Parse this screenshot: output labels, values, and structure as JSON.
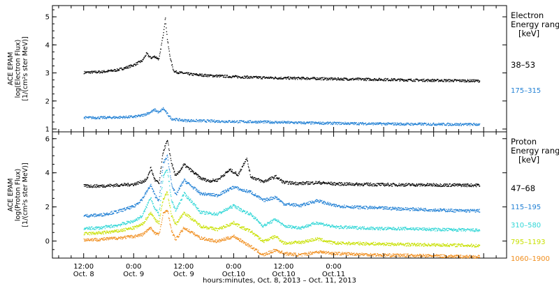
{
  "chart_data": [
    {
      "type": "scatter",
      "ylabel_lines": [
        "ACE EPAM",
        "log(Electron Flux)",
        "[1/(cm²s ster MeV)]"
      ],
      "ylim": [
        0.9,
        5.4
      ],
      "yticks": [
        1,
        2,
        3,
        4,
        5
      ],
      "legend_title_lines": [
        "Electron",
        "Energy range",
        "[keV]"
      ],
      "series": [
        {
          "name": "38–53",
          "color": "#000000",
          "points": [
            [
              0,
              3.03
            ],
            [
              2,
              3.04
            ],
            [
              4,
              3.05
            ],
            [
              6,
              3.08
            ],
            [
              8,
              3.12
            ],
            [
              10,
              3.2
            ],
            [
              12,
              3.3
            ],
            [
              14,
              3.45
            ],
            [
              15,
              3.7
            ],
            [
              16,
              3.55
            ],
            [
              17,
              3.6
            ],
            [
              18,
              3.5
            ],
            [
              19,
              4.4
            ],
            [
              19.5,
              4.98
            ],
            [
              20,
              4.2
            ],
            [
              20.5,
              3.7
            ],
            [
              21,
              3.35
            ],
            [
              21.5,
              3.1
            ],
            [
              22,
              3.05
            ],
            [
              24,
              3.0
            ],
            [
              26,
              2.96
            ],
            [
              30,
              2.92
            ],
            [
              36,
              2.88
            ],
            [
              42,
              2.85
            ],
            [
              48,
              2.83
            ],
            [
              54,
              2.82
            ],
            [
              60,
              2.8
            ],
            [
              66,
              2.79
            ],
            [
              72,
              2.78
            ],
            [
              78,
              2.76
            ],
            [
              84,
              2.75
            ],
            [
              90,
              2.74
            ],
            [
              95,
              2.73
            ]
          ]
        },
        {
          "name": "175–315",
          "color": "#1f7fd4",
          "points": [
            [
              0,
              1.42
            ],
            [
              4,
              1.42
            ],
            [
              8,
              1.43
            ],
            [
              12,
              1.45
            ],
            [
              14,
              1.5
            ],
            [
              16,
              1.62
            ],
            [
              17,
              1.7
            ],
            [
              18,
              1.6
            ],
            [
              19,
              1.75
            ],
            [
              20,
              1.55
            ],
            [
              21,
              1.38
            ],
            [
              24,
              1.32
            ],
            [
              30,
              1.3
            ],
            [
              36,
              1.28
            ],
            [
              42,
              1.27
            ],
            [
              48,
              1.25
            ],
            [
              54,
              1.23
            ],
            [
              60,
              1.22
            ],
            [
              66,
              1.21
            ],
            [
              72,
              1.2
            ],
            [
              78,
              1.19
            ],
            [
              84,
              1.19
            ],
            [
              90,
              1.18
            ],
            [
              95,
              1.18
            ]
          ]
        }
      ]
    },
    {
      "type": "scatter",
      "ylabel_lines": [
        "ACE EPAM",
        "log(Proton Flux)",
        "[1/(cm²s ster MeV)]"
      ],
      "ylim": [
        -1.0,
        6.4
      ],
      "yticks": [
        0,
        2,
        4,
        6
      ],
      "legend_title_lines": [
        "Proton",
        "Energy range",
        "[keV]"
      ],
      "series": [
        {
          "name": "47–68",
          "color": "#000000",
          "points": [
            [
              0,
              3.25
            ],
            [
              4,
              3.25
            ],
            [
              8,
              3.3
            ],
            [
              12,
              3.35
            ],
            [
              15,
              3.6
            ],
            [
              16,
              4.3
            ],
            [
              17,
              3.6
            ],
            [
              18,
              3.4
            ],
            [
              19,
              5.3
            ],
            [
              20,
              5.9
            ],
            [
              21,
              4.6
            ],
            [
              22,
              3.8
            ],
            [
              24,
              4.5
            ],
            [
              26,
              4.1
            ],
            [
              28,
              3.7
            ],
            [
              30,
              3.55
            ],
            [
              32,
              3.6
            ],
            [
              35,
              4.2
            ],
            [
              37,
              3.9
            ],
            [
              39,
              4.9
            ],
            [
              40,
              3.8
            ],
            [
              43,
              3.5
            ],
            [
              46,
              3.8
            ],
            [
              48,
              3.45
            ],
            [
              52,
              3.4
            ],
            [
              56,
              3.45
            ],
            [
              60,
              3.38
            ],
            [
              66,
              3.35
            ],
            [
              72,
              3.33
            ],
            [
              78,
              3.32
            ],
            [
              84,
              3.31
            ],
            [
              90,
              3.3
            ],
            [
              95,
              3.3
            ]
          ]
        },
        {
          "name": "115–195",
          "color": "#1f7fd4",
          "points": [
            [
              0,
              1.5
            ],
            [
              4,
              1.55
            ],
            [
              8,
              1.75
            ],
            [
              12,
              2.05
            ],
            [
              14,
              2.5
            ],
            [
              16,
              3.3
            ],
            [
              17,
              2.7
            ],
            [
              18,
              2.4
            ],
            [
              19,
              4.6
            ],
            [
              20,
              5.0
            ],
            [
              21,
              3.4
            ],
            [
              22,
              2.7
            ],
            [
              24,
              3.6
            ],
            [
              26,
              3.2
            ],
            [
              28,
              2.8
            ],
            [
              32,
              2.7
            ],
            [
              36,
              3.2
            ],
            [
              38,
              3.0
            ],
            [
              40,
              2.9
            ],
            [
              43,
              2.4
            ],
            [
              46,
              2.6
            ],
            [
              48,
              2.2
            ],
            [
              52,
              2.1
            ],
            [
              56,
              2.4
            ],
            [
              60,
              2.1
            ],
            [
              66,
              2.0
            ],
            [
              72,
              1.95
            ],
            [
              78,
              1.9
            ],
            [
              84,
              1.85
            ],
            [
              90,
              1.8
            ],
            [
              95,
              1.8
            ]
          ]
        },
        {
          "name": "310–580",
          "color": "#2fd6d6",
          "points": [
            [
              0,
              0.75
            ],
            [
              4,
              0.8
            ],
            [
              8,
              0.95
            ],
            [
              12,
              1.2
            ],
            [
              14,
              1.5
            ],
            [
              16,
              2.6
            ],
            [
              17,
              1.9
            ],
            [
              18,
              1.6
            ],
            [
              19,
              3.8
            ],
            [
              20,
              4.2
            ],
            [
              21,
              2.4
            ],
            [
              22,
              1.8
            ],
            [
              24,
              2.8
            ],
            [
              26,
              2.3
            ],
            [
              28,
              1.7
            ],
            [
              32,
              1.6
            ],
            [
              36,
              2.1
            ],
            [
              38,
              1.8
            ],
            [
              40,
              1.6
            ],
            [
              43,
              0.9
            ],
            [
              46,
              1.3
            ],
            [
              48,
              0.9
            ],
            [
              52,
              0.8
            ],
            [
              56,
              1.1
            ],
            [
              60,
              0.85
            ],
            [
              66,
              0.8
            ],
            [
              72,
              0.75
            ],
            [
              78,
              0.75
            ],
            [
              84,
              0.7
            ],
            [
              90,
              0.68
            ],
            [
              95,
              0.65
            ]
          ]
        },
        {
          "name": "795–1193",
          "color": "#c8e000",
          "points": [
            [
              0,
              0.45
            ],
            [
              4,
              0.5
            ],
            [
              8,
              0.6
            ],
            [
              12,
              0.8
            ],
            [
              14,
              1.0
            ],
            [
              16,
              1.7
            ],
            [
              17,
              1.3
            ],
            [
              18,
              1.1
            ],
            [
              19,
              2.5
            ],
            [
              20,
              2.9
            ],
            [
              21,
              1.5
            ],
            [
              22,
              1.0
            ],
            [
              24,
              1.7
            ],
            [
              26,
              1.3
            ],
            [
              28,
              0.9
            ],
            [
              32,
              0.7
            ],
            [
              36,
              1.1
            ],
            [
              38,
              0.8
            ],
            [
              40,
              0.6
            ],
            [
              43,
              0.0
            ],
            [
              46,
              0.3
            ],
            [
              48,
              -0.1
            ],
            [
              52,
              -0.05
            ],
            [
              56,
              0.15
            ],
            [
              60,
              -0.1
            ],
            [
              66,
              -0.12
            ],
            [
              72,
              -0.15
            ],
            [
              78,
              -0.18
            ],
            [
              84,
              -0.2
            ],
            [
              90,
              -0.22
            ],
            [
              95,
              -0.25
            ]
          ]
        },
        {
          "name": "1060–1900",
          "color": "#f08c1a",
          "points": [
            [
              0,
              0.1
            ],
            [
              4,
              0.12
            ],
            [
              8,
              0.2
            ],
            [
              12,
              0.3
            ],
            [
              14,
              0.4
            ],
            [
              16,
              0.8
            ],
            [
              17,
              0.5
            ],
            [
              18,
              0.4
            ],
            [
              19,
              1.6
            ],
            [
              20,
              1.9
            ],
            [
              21,
              0.6
            ],
            [
              22,
              0.1
            ],
            [
              24,
              0.8
            ],
            [
              26,
              0.5
            ],
            [
              28,
              0.2
            ],
            [
              32,
              0.0
            ],
            [
              36,
              0.3
            ],
            [
              38,
              0.0
            ],
            [
              40,
              -0.3
            ],
            [
              43,
              -0.8
            ],
            [
              46,
              -0.5
            ],
            [
              48,
              -0.7
            ],
            [
              52,
              -0.8
            ],
            [
              56,
              -0.6
            ],
            [
              60,
              -0.7
            ],
            [
              66,
              -0.75
            ],
            [
              72,
              -0.8
            ],
            [
              78,
              -0.82
            ],
            [
              84,
              -0.85
            ],
            [
              90,
              -0.88
            ],
            [
              95,
              -0.9
            ]
          ]
        }
      ]
    }
  ],
  "x_axis": {
    "xlim": [
      -7.5,
      101.5
    ],
    "major_ticks": [
      {
        "x": 0,
        "label": "12:00",
        "day": "Oct. 8"
      },
      {
        "x": 12,
        "label": "0:00",
        "day": "Oct. 9"
      },
      {
        "x": 24,
        "label": "12:00",
        "day": "Oct. 9"
      },
      {
        "x": 36,
        "label": "0:00",
        "day": "Oct.10"
      },
      {
        "x": 48,
        "label": "12:00",
        "day": "Oct.10"
      },
      {
        "x": 60,
        "label": "0:00",
        "day": "Oct.11"
      }
    ],
    "xlabel": "hours:minutes, Oct.  8, 2013 – Oct. 11, 2013"
  },
  "colors": {
    "axes": "#000000",
    "background": "#ffffff"
  }
}
